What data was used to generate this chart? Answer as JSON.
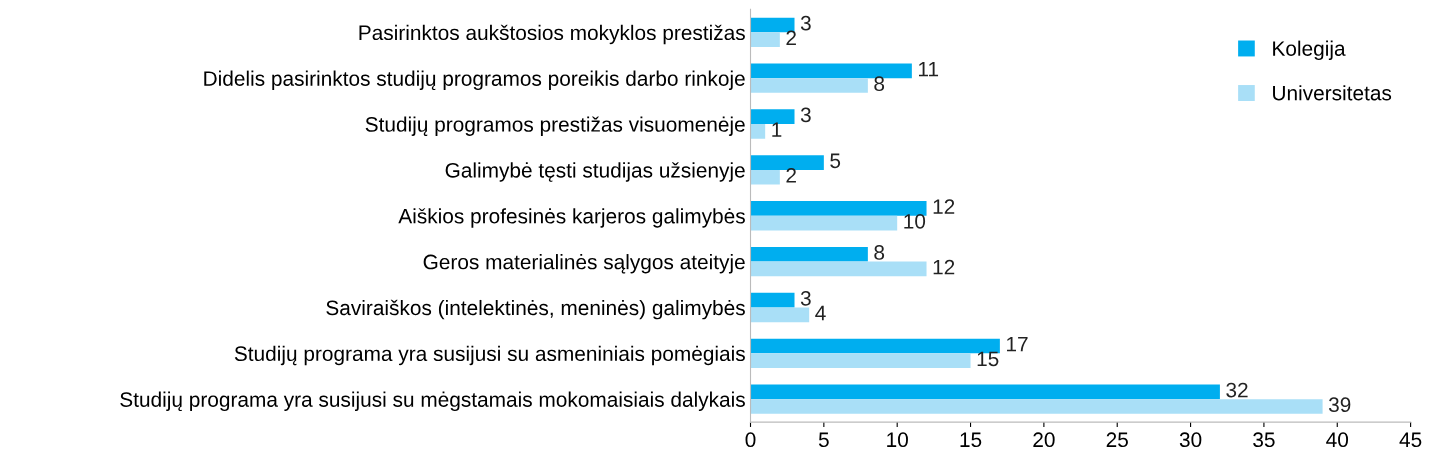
{
  "chart_data": {
    "type": "bar",
    "orientation": "horizontal",
    "categories": [
      "Pasirinktos aukštosios mokyklos prestižas",
      "Didelis pasirinktos studijų programos poreikis darbo rinkoje",
      "Studijų programos prestižas visuomenėje",
      "Galimybė tęsti studijas užsienyje",
      "Aiškios profesinės karjeros galimybės",
      "Geros materialinės sąlygos ateityje",
      "Saviraiškos (intelektinės, meninės) galimybės",
      "Studijų programa yra susijusi su asmeniniais pomėgiais",
      "Studijų programa yra susijusi su mėgstamais mokomaisiais dalykais"
    ],
    "series": [
      {
        "name": "Kolegija",
        "color": "#00aeef",
        "values": [
          3,
          11,
          3,
          5,
          12,
          8,
          3,
          17,
          32
        ]
      },
      {
        "name": "Universitetas",
        "color": "#a9dff7",
        "values": [
          2,
          8,
          1,
          2,
          10,
          12,
          4,
          15,
          39
        ]
      }
    ],
    "xlim": [
      0,
      45
    ],
    "xticks": [
      0,
      5,
      10,
      15,
      20,
      25,
      30,
      35,
      40,
      45
    ],
    "grid": false,
    "legend": "top right",
    "data_labels": true
  }
}
